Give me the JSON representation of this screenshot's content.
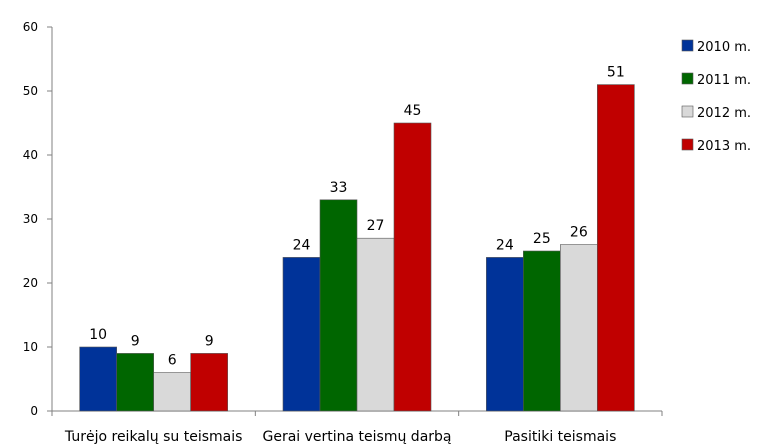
{
  "chart_data": {
    "type": "bar",
    "title": "",
    "xlabel": "",
    "ylabel": "",
    "ylim": [
      0,
      60
    ],
    "yticks": [
      0,
      10,
      20,
      30,
      40,
      50,
      60
    ],
    "categories": [
      "Turėjo reikalų su teismais",
      "Gerai vertina teismų darbą",
      "Pasitiki teismais"
    ],
    "series": [
      {
        "name": "2010 m.",
        "values": [
          10,
          24,
          24
        ],
        "color": "#003399"
      },
      {
        "name": "2011 m.",
        "values": [
          9,
          33,
          25
        ],
        "color": "#006600"
      },
      {
        "name": "2012 m.",
        "values": [
          6,
          27,
          26
        ],
        "color": "#d9d9d9"
      },
      {
        "name": "2013 m.",
        "values": [
          9,
          45,
          51
        ],
        "color": "#c00000"
      }
    ],
    "legend_position": "right",
    "data_labels": true,
    "grid": false
  }
}
